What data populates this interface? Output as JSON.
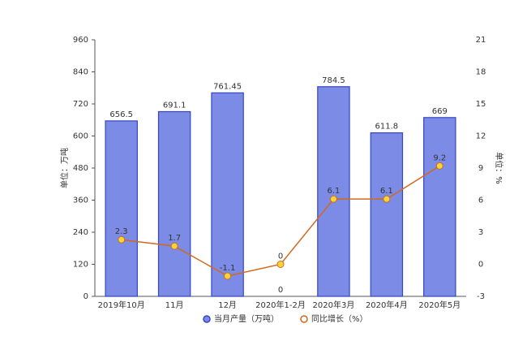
{
  "chart_data": {
    "type": "bar_line",
    "categories": [
      "2019年10月",
      "11月",
      "12月",
      "2020年1-2月",
      "2020年3月",
      "2020年4月",
      "2020年5月"
    ],
    "series": [
      {
        "name": "当月产量（万吨）",
        "color": "#7b8be6",
        "values": [
          656.5,
          691.1,
          761.45,
          0,
          784.5,
          611.8,
          669
        ]
      },
      {
        "name": "同比增长（%）",
        "color": "#d2691e",
        "axis": "y2",
        "values": [
          2.3,
          1.7,
          -1.1,
          0,
          6.1,
          6.1,
          9.2
        ]
      }
    ],
    "ylabel": "单位：万吨",
    "y2label": "单位：%",
    "ylim": [
      0,
      960
    ],
    "yticks": [
      0,
      120,
      240,
      360,
      480,
      600,
      720,
      840,
      960
    ],
    "y2lim": [
      -3,
      21
    ],
    "y2ticks": [
      -3,
      0,
      3,
      6,
      9,
      12,
      15,
      18,
      21
    ],
    "grid": false
  }
}
